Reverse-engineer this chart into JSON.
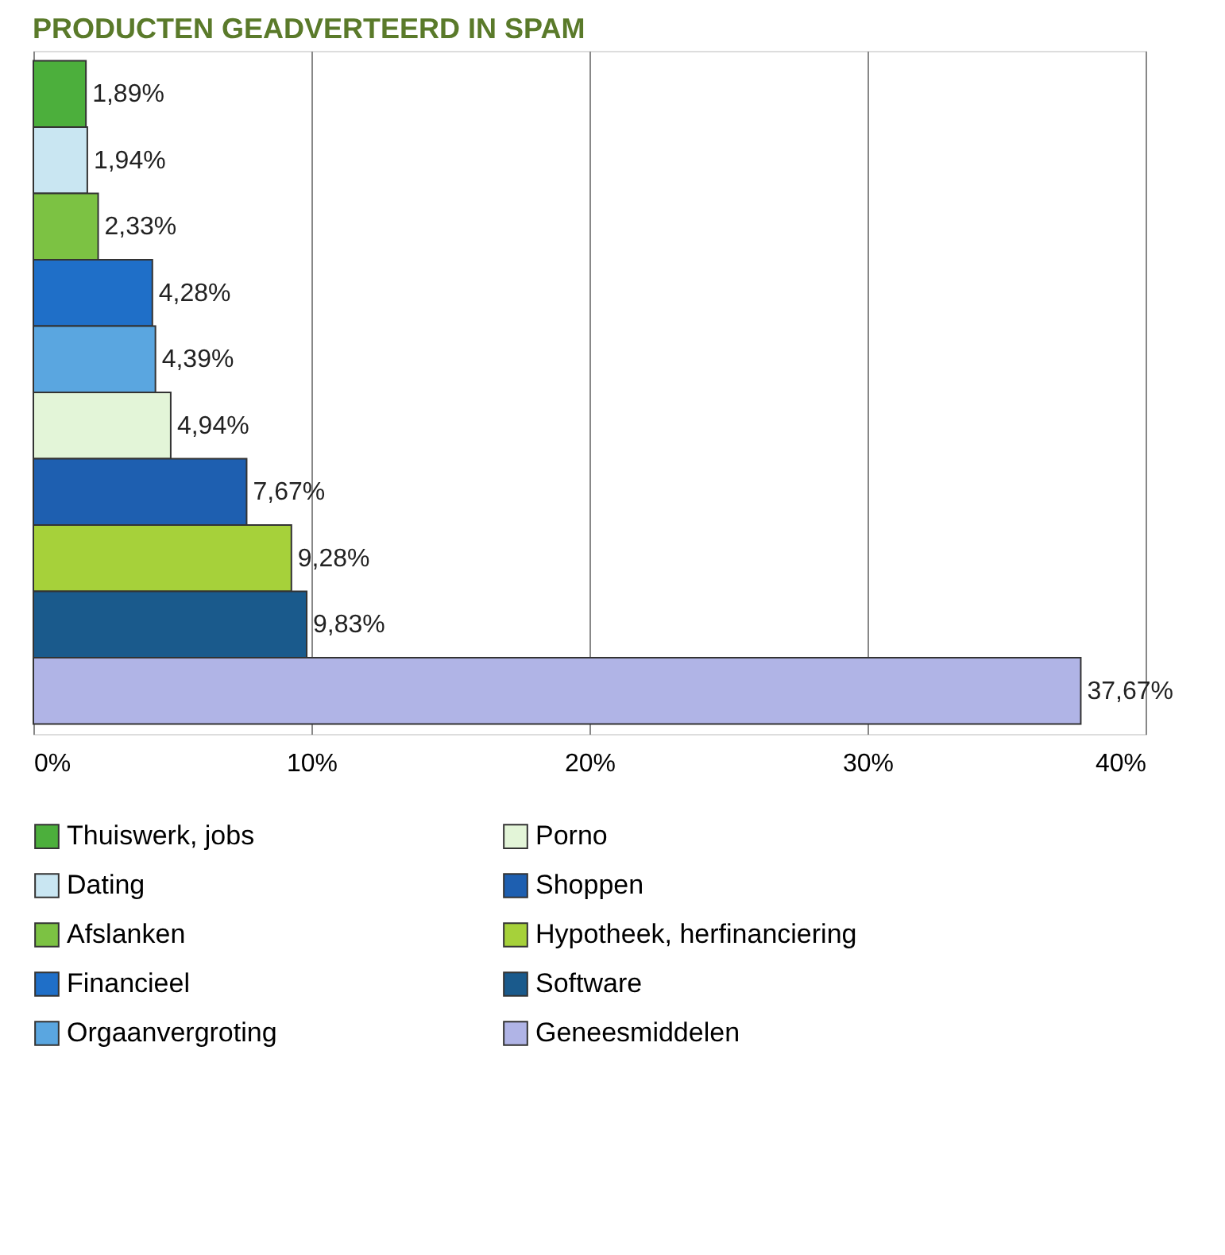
{
  "chart_data": {
    "type": "bar",
    "orientation": "horizontal",
    "title": "PRODUCTEN GEADVERTEERD IN SPAM",
    "categories": [
      null,
      null,
      null,
      null,
      null,
      null,
      null,
      null,
      null,
      null
    ],
    "series": [
      {
        "name": "Thuiswerk, jobs",
        "color": "#4caf3c",
        "values": [
          1.89,
          null,
          null,
          null,
          null,
          null,
          null,
          null,
          null,
          null
        ],
        "value_labels": [
          "1,89%",
          null,
          null,
          null,
          null,
          null,
          null,
          null,
          null,
          null
        ]
      },
      {
        "name": "Dating",
        "color": "#c9e6f2",
        "values": [
          null,
          1.94,
          null,
          null,
          null,
          null,
          null,
          null,
          null,
          null
        ],
        "value_labels": [
          null,
          "1,94%",
          null,
          null,
          null,
          null,
          null,
          null,
          null,
          null
        ]
      },
      {
        "name": "Afslanken",
        "color": "#7cc243",
        "values": [
          null,
          null,
          2.33,
          null,
          null,
          null,
          null,
          null,
          null,
          null
        ],
        "value_labels": [
          null,
          null,
          "2,33%",
          null,
          null,
          null,
          null,
          null,
          null,
          null
        ]
      },
      {
        "name": "Financieel",
        "color": "#1f6fc8",
        "values": [
          null,
          null,
          null,
          4.28,
          null,
          null,
          null,
          null,
          null,
          null
        ],
        "value_labels": [
          null,
          null,
          null,
          "4,28%",
          null,
          null,
          null,
          null,
          null,
          null
        ]
      },
      {
        "name": "Orgaanvergroting",
        "color": "#5aa6e0",
        "values": [
          null,
          null,
          null,
          null,
          4.39,
          null,
          null,
          null,
          null,
          null
        ],
        "value_labels": [
          null,
          null,
          null,
          null,
          "4,39%",
          null,
          null,
          null,
          null,
          null
        ]
      },
      {
        "name": "Porno",
        "color": "#e3f5d8",
        "values": [
          null,
          null,
          null,
          null,
          null,
          4.94,
          null,
          null,
          null,
          null
        ],
        "value_labels": [
          null,
          null,
          null,
          null,
          null,
          "4,94%",
          null,
          null,
          null,
          null
        ]
      },
      {
        "name": "Shoppen",
        "color": "#1e5fb0",
        "values": [
          null,
          null,
          null,
          null,
          null,
          null,
          7.67,
          null,
          null,
          null
        ],
        "value_labels": [
          null,
          null,
          null,
          null,
          null,
          null,
          "7,67%",
          null,
          null,
          null
        ]
      },
      {
        "name": "Hypotheek, herfinanciering",
        "color": "#a6d13a",
        "values": [
          null,
          null,
          null,
          null,
          null,
          null,
          null,
          9.28,
          null,
          null
        ],
        "value_labels": [
          null,
          null,
          null,
          null,
          null,
          null,
          null,
          "9,28%",
          null,
          null
        ]
      },
      {
        "name": "Software",
        "color": "#1a5a8c",
        "values": [
          null,
          null,
          null,
          null,
          null,
          null,
          null,
          null,
          9.83,
          null
        ],
        "value_labels": [
          null,
          null,
          null,
          null,
          null,
          null,
          null,
          null,
          "9,83%",
          null
        ]
      },
      {
        "name": "Geneesmiddelen",
        "color": "#b0b4e6",
        "values": [
          null,
          null,
          null,
          null,
          null,
          null,
          null,
          null,
          null,
          37.67
        ],
        "value_labels": [
          null,
          null,
          null,
          null,
          null,
          null,
          null,
          null,
          null,
          "37,67%"
        ]
      }
    ],
    "xlim": [
      0,
      40
    ],
    "xticks": [
      {
        "value": 0,
        "label": "0%"
      },
      {
        "value": 10,
        "label": "10%"
      },
      {
        "value": 20,
        "label": "20%"
      },
      {
        "value": 30,
        "label": "30%"
      },
      {
        "value": 40,
        "label": "40%"
      }
    ],
    "grid": "x",
    "legend": "bottom",
    "tick_labels": "x"
  }
}
